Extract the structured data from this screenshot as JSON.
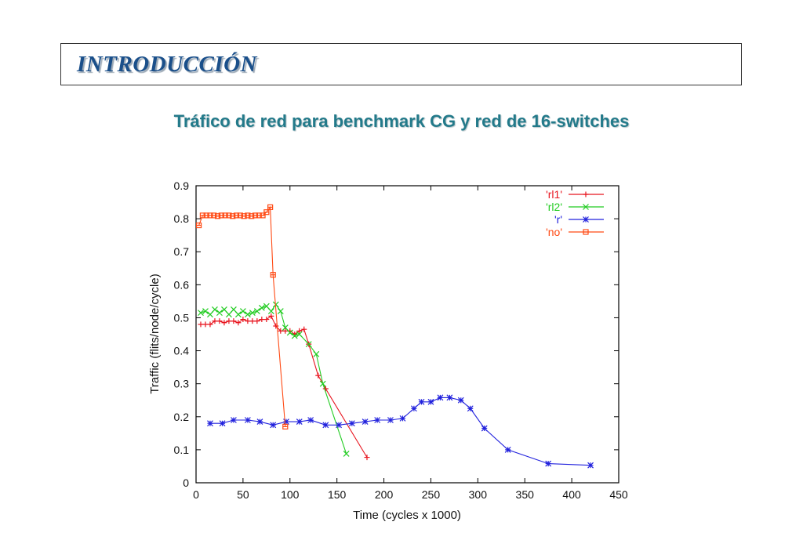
{
  "header": {
    "title": "INTRODUCCIÓN"
  },
  "subtitle": "Tráfico de red para benchmark CG y red de 16-switches",
  "chart_data": {
    "type": "line",
    "title": "",
    "xlabel": "Time (cycles x 1000)",
    "ylabel": "Traffic (flits/node/cycle)",
    "xlim": [
      0,
      450
    ],
    "ylim": [
      0,
      0.9
    ],
    "xticks": [
      "0",
      "50",
      "100",
      "150",
      "200",
      "250",
      "300",
      "350",
      "400",
      "450"
    ],
    "yticks": [
      "0",
      "0.1",
      "0.2",
      "0.3",
      "0.4",
      "0.5",
      "0.6",
      "0.7",
      "0.8",
      "0.9"
    ],
    "grid": false,
    "legend_position": "top-right",
    "series": [
      {
        "name": "'rl1'",
        "color": "#e8141e",
        "marker": "plus",
        "points": [
          [
            5,
            0.48
          ],
          [
            10,
            0.48
          ],
          [
            15,
            0.48
          ],
          [
            20,
            0.49
          ],
          [
            25,
            0.49
          ],
          [
            30,
            0.485
          ],
          [
            35,
            0.49
          ],
          [
            40,
            0.49
          ],
          [
            45,
            0.485
          ],
          [
            50,
            0.495
          ],
          [
            55,
            0.49
          ],
          [
            60,
            0.49
          ],
          [
            65,
            0.49
          ],
          [
            70,
            0.495
          ],
          [
            75,
            0.495
          ],
          [
            80,
            0.505
          ],
          [
            85,
            0.475
          ],
          [
            90,
            0.46
          ],
          [
            95,
            0.46
          ],
          [
            100,
            0.46
          ],
          [
            105,
            0.45
          ],
          [
            110,
            0.46
          ],
          [
            115,
            0.465
          ],
          [
            120,
            0.42
          ],
          [
            130,
            0.325
          ],
          [
            138,
            0.285
          ],
          [
            182,
            0.077
          ]
        ]
      },
      {
        "name": "'rl2'",
        "color": "#22cc22",
        "marker": "cross",
        "points": [
          [
            5,
            0.515
          ],
          [
            10,
            0.52
          ],
          [
            15,
            0.51
          ],
          [
            20,
            0.525
          ],
          [
            25,
            0.515
          ],
          [
            30,
            0.525
          ],
          [
            35,
            0.51
          ],
          [
            40,
            0.525
          ],
          [
            45,
            0.51
          ],
          [
            50,
            0.52
          ],
          [
            55,
            0.51
          ],
          [
            60,
            0.515
          ],
          [
            65,
            0.52
          ],
          [
            70,
            0.53
          ],
          [
            75,
            0.535
          ],
          [
            80,
            0.52
          ],
          [
            85,
            0.54
          ],
          [
            90,
            0.52
          ],
          [
            95,
            0.47
          ],
          [
            100,
            0.455
          ],
          [
            105,
            0.445
          ],
          [
            110,
            0.45
          ],
          [
            120,
            0.42
          ],
          [
            128,
            0.39
          ],
          [
            135,
            0.3
          ],
          [
            160,
            0.088
          ]
        ]
      },
      {
        "name": "'r'",
        "color": "#2222dd",
        "marker": "star",
        "points": [
          [
            15,
            0.18
          ],
          [
            28,
            0.18
          ],
          [
            40,
            0.19
          ],
          [
            55,
            0.19
          ],
          [
            68,
            0.185
          ],
          [
            82,
            0.175
          ],
          [
            96,
            0.185
          ],
          [
            110,
            0.185
          ],
          [
            122,
            0.19
          ],
          [
            138,
            0.175
          ],
          [
            152,
            0.175
          ],
          [
            166,
            0.18
          ],
          [
            180,
            0.185
          ],
          [
            193,
            0.19
          ],
          [
            207,
            0.19
          ],
          [
            220,
            0.195
          ],
          [
            232,
            0.225
          ],
          [
            240,
            0.245
          ],
          [
            250,
            0.245
          ],
          [
            260,
            0.258
          ],
          [
            270,
            0.258
          ],
          [
            282,
            0.25
          ],
          [
            292,
            0.225
          ],
          [
            307,
            0.165
          ],
          [
            332,
            0.1
          ],
          [
            375,
            0.058
          ],
          [
            420,
            0.053
          ]
        ]
      },
      {
        "name": "'no'",
        "color": "#ff4a14",
        "marker": "box",
        "points": [
          [
            3,
            0.78
          ],
          [
            7,
            0.81
          ],
          [
            11,
            0.81
          ],
          [
            15,
            0.81
          ],
          [
            19,
            0.81
          ],
          [
            23,
            0.808
          ],
          [
            27,
            0.81
          ],
          [
            31,
            0.81
          ],
          [
            35,
            0.81
          ],
          [
            39,
            0.808
          ],
          [
            43,
            0.81
          ],
          [
            47,
            0.81
          ],
          [
            51,
            0.808
          ],
          [
            55,
            0.81
          ],
          [
            59,
            0.808
          ],
          [
            63,
            0.81
          ],
          [
            67,
            0.81
          ],
          [
            71,
            0.81
          ],
          [
            75,
            0.82
          ],
          [
            79,
            0.835
          ],
          [
            82,
            0.63
          ],
          [
            95,
            0.17
          ]
        ]
      }
    ]
  }
}
